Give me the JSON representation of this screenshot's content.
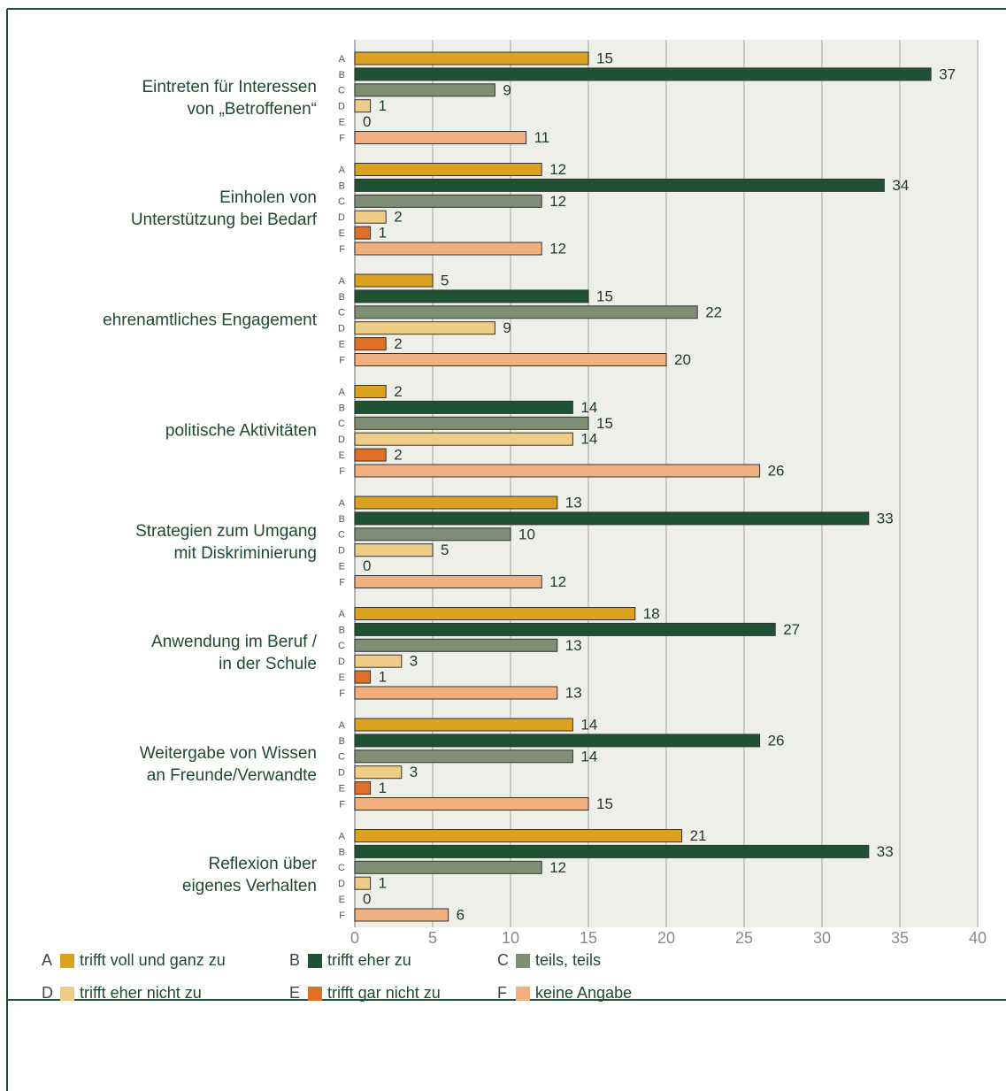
{
  "chart_data": {
    "type": "bar",
    "orientation": "horizontal",
    "categories": [
      "Eintreten für Interessen\nvon „Betroffenen“",
      "Einholen von\nUnterstützung bei Bedarf",
      "ehrenamtliches Engagement",
      "politische Aktivitäten",
      "Strategien zum Umgang\nmit Diskriminierung",
      "Anwendung im Beruf /\nin der Schule",
      "Weitergabe von Wissen\nan Freunde/Verwandte",
      "Reflexion über\neigenes Verhalten"
    ],
    "series": [
      {
        "key": "A",
        "name": "trifft voll und ganz zu",
        "color": "#dba21f",
        "values": [
          15,
          12,
          5,
          2,
          13,
          18,
          14,
          21
        ]
      },
      {
        "key": "B",
        "name": "trifft eher zu",
        "color": "#1f5233",
        "values": [
          37,
          34,
          15,
          14,
          33,
          27,
          26,
          33
        ]
      },
      {
        "key": "C",
        "name": "teils, teils",
        "color": "#7e8f73",
        "values": [
          9,
          12,
          22,
          15,
          10,
          13,
          14,
          12
        ]
      },
      {
        "key": "D",
        "name": "trifft eher nicht zu",
        "color": "#f0cd87",
        "values": [
          1,
          2,
          9,
          14,
          5,
          3,
          3,
          1
        ]
      },
      {
        "key": "E",
        "name": "trifft gar nicht zu",
        "color": "#e07026",
        "values": [
          0,
          1,
          2,
          2,
          0,
          1,
          1,
          0
        ]
      },
      {
        "key": "F",
        "name": "keine Angabe",
        "color": "#f3b07f",
        "values": [
          11,
          12,
          20,
          26,
          12,
          13,
          15,
          6
        ]
      }
    ],
    "xlim": [
      0,
      40
    ],
    "xticks": [
      0,
      5,
      10,
      15,
      20,
      25,
      30,
      35,
      40
    ],
    "grid": true
  }
}
